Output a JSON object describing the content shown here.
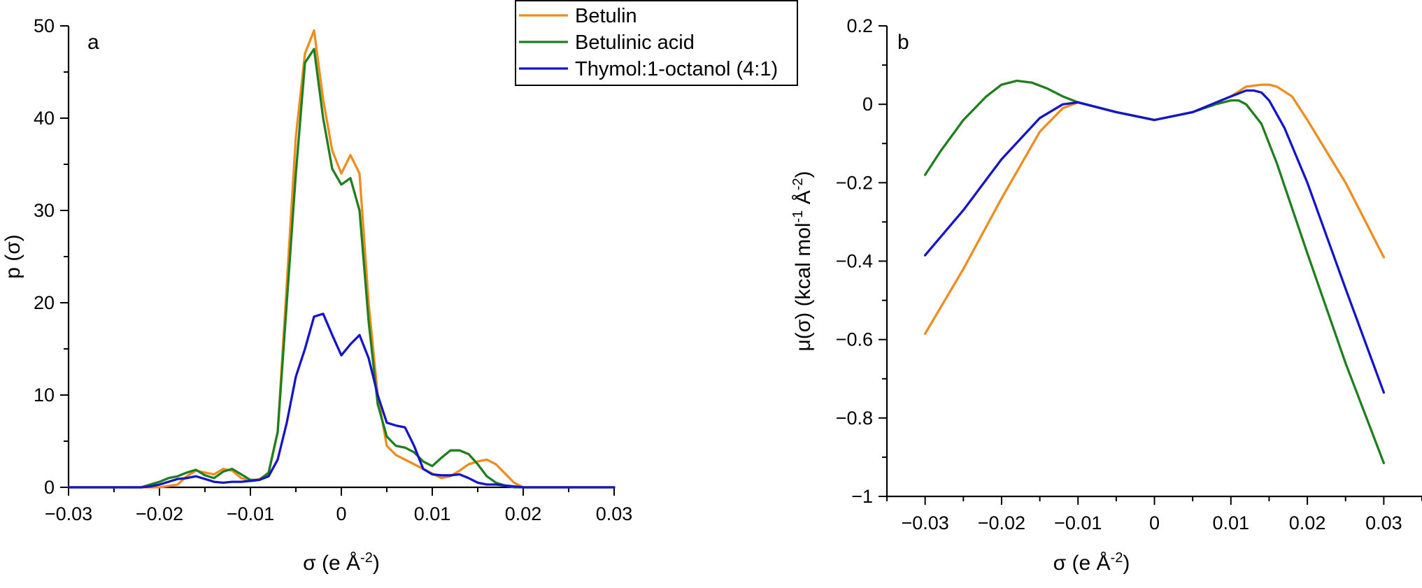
{
  "legend": {
    "entries": [
      "Betulin",
      "Betulinic acid",
      "Thymol:1-octanol (4:1)"
    ]
  },
  "colors": {
    "betulin": "#ED8C1F",
    "betulinic": "#1F7F1F",
    "thymol": "#1414C8"
  },
  "chart_data": [
    {
      "type": "line",
      "panel_label": "a",
      "xlabel": "σ (e Å^-2)",
      "ylabel": "p (σ)",
      "xlim": [
        -0.03,
        0.03
      ],
      "ylim": [
        0,
        50
      ],
      "xticks": [
        -0.03,
        -0.02,
        -0.01,
        0,
        0.01,
        0.02,
        0.03
      ],
      "xtick_labels": [
        "−0.03",
        "−0.02",
        "−0.01",
        "0",
        "0.01",
        "0.02",
        "0.03"
      ],
      "yticks": [
        0,
        10,
        20,
        30,
        40,
        50
      ],
      "ytick_labels": [
        "0",
        "10",
        "20",
        "30",
        "40",
        "50"
      ],
      "series": [
        {
          "name": "Betulin",
          "x": [
            -0.03,
            -0.022,
            -0.02,
            -0.018,
            -0.017,
            -0.016,
            -0.015,
            -0.014,
            -0.013,
            -0.012,
            -0.011,
            -0.01,
            -0.009,
            -0.008,
            -0.007,
            -0.006,
            -0.005,
            -0.004,
            -0.003,
            -0.002,
            -0.001,
            0,
            0.001,
            0.002,
            0.003,
            0.004,
            0.005,
            0.006,
            0.007,
            0.008,
            0.009,
            0.01,
            0.011,
            0.012,
            0.013,
            0.014,
            0.015,
            0.016,
            0.017,
            0.018,
            0.019,
            0.02,
            0.021,
            0.03
          ],
          "y": [
            0,
            0,
            0,
            0.3,
            1.2,
            1.8,
            1.6,
            1.4,
            2.0,
            1.8,
            1.0,
            0.7,
            0.9,
            1.5,
            6,
            22,
            38,
            47,
            49.5,
            42,
            36.5,
            34,
            36,
            34,
            20,
            10,
            4.5,
            3.5,
            3.0,
            2.5,
            2.0,
            1.5,
            1.0,
            1.2,
            1.8,
            2.5,
            2.8,
            3.0,
            2.5,
            1.5,
            0.5,
            0,
            0,
            0
          ]
        },
        {
          "name": "Betulinic acid",
          "x": [
            -0.03,
            -0.022,
            -0.021,
            -0.02,
            -0.019,
            -0.018,
            -0.017,
            -0.016,
            -0.015,
            -0.014,
            -0.013,
            -0.012,
            -0.011,
            -0.01,
            -0.009,
            -0.008,
            -0.007,
            -0.006,
            -0.005,
            -0.004,
            -0.003,
            -0.002,
            -0.001,
            0,
            0.001,
            0.002,
            0.003,
            0.004,
            0.005,
            0.006,
            0.007,
            0.008,
            0.009,
            0.01,
            0.011,
            0.012,
            0.013,
            0.014,
            0.015,
            0.016,
            0.017,
            0.018,
            0.019,
            0.02,
            0.021,
            0.03
          ],
          "y": [
            0,
            0,
            0.3,
            0.6,
            1.0,
            1.2,
            1.6,
            1.9,
            1.3,
            1.0,
            1.7,
            2.0,
            1.4,
            0.8,
            0.8,
            1.6,
            6,
            20,
            34,
            46,
            47.5,
            40,
            34.5,
            32.8,
            33.5,
            30,
            18,
            9,
            5.5,
            4.5,
            4.3,
            3.8,
            2.8,
            2.3,
            3.2,
            4.0,
            4.0,
            3.6,
            2.5,
            1.2,
            0.5,
            0.2,
            0,
            0,
            0,
            0
          ]
        },
        {
          "name": "Thymol:1-octanol (4:1)",
          "x": [
            -0.03,
            -0.022,
            -0.021,
            -0.02,
            -0.019,
            -0.018,
            -0.017,
            -0.016,
            -0.015,
            -0.014,
            -0.013,
            -0.012,
            -0.011,
            -0.01,
            -0.009,
            -0.008,
            -0.007,
            -0.006,
            -0.005,
            -0.004,
            -0.003,
            -0.002,
            -0.001,
            0,
            0.001,
            0.002,
            0.003,
            0.004,
            0.005,
            0.006,
            0.007,
            0.008,
            0.009,
            0.01,
            0.011,
            0.012,
            0.013,
            0.014,
            0.015,
            0.016,
            0.017,
            0.018,
            0.019,
            0.02,
            0.021,
            0.03
          ],
          "y": [
            0,
            0,
            0.1,
            0.3,
            0.6,
            0.9,
            1.0,
            1.2,
            0.9,
            0.6,
            0.5,
            0.6,
            0.6,
            0.7,
            0.8,
            1.2,
            3,
            7,
            12,
            15,
            18.5,
            18.8,
            16.5,
            14.3,
            15.5,
            16.5,
            14,
            10,
            7,
            6.7,
            6.5,
            4.5,
            2.0,
            1.4,
            1.3,
            1.3,
            1.4,
            1.0,
            0.5,
            0.3,
            0.3,
            0.2,
            0.1,
            0,
            0,
            0
          ]
        }
      ]
    },
    {
      "type": "line",
      "panel_label": "b",
      "xlabel": "σ (e Å^-2)",
      "ylabel": "μ(σ) (kcal mol^-1 Å^-2)",
      "xlim": [
        -0.035,
        0.035
      ],
      "ylim": [
        -1,
        0.2
      ],
      "xticks": [
        -0.03,
        -0.02,
        -0.01,
        0,
        0.01,
        0.02,
        0.03
      ],
      "xtick_labels": [
        "−0.03",
        "−0.02",
        "−0.01",
        "0",
        "0.01",
        "0.02",
        "0.03"
      ],
      "yticks": [
        0.2,
        0,
        -0.2,
        -0.4,
        -0.6,
        -0.8,
        -1
      ],
      "ytick_labels": [
        "0.2",
        "0",
        "−0.2",
        "−0.4",
        "−0.6",
        "−0.8",
        "−1"
      ],
      "series": [
        {
          "name": "Betulin",
          "x": [
            -0.03,
            -0.025,
            -0.02,
            -0.015,
            -0.012,
            -0.01,
            -0.005,
            0,
            0.005,
            0.01,
            0.012,
            0.014,
            0.015,
            0.016,
            0.018,
            0.02,
            0.025,
            0.03
          ],
          "y": [
            -0.585,
            -0.42,
            -0.24,
            -0.07,
            -0.01,
            0.005,
            -0.02,
            -0.04,
            -0.02,
            0.02,
            0.045,
            0.05,
            0.05,
            0.045,
            0.02,
            -0.04,
            -0.2,
            -0.39
          ]
        },
        {
          "name": "Betulinic acid",
          "x": [
            -0.03,
            -0.028,
            -0.025,
            -0.022,
            -0.02,
            -0.018,
            -0.016,
            -0.014,
            -0.012,
            -0.01,
            -0.005,
            0,
            0.005,
            0.008,
            0.01,
            0.011,
            0.012,
            0.014,
            0.016,
            0.02,
            0.025,
            0.03
          ],
          "y": [
            -0.18,
            -0.12,
            -0.04,
            0.02,
            0.05,
            0.06,
            0.055,
            0.04,
            0.02,
            0.005,
            -0.02,
            -0.04,
            -0.02,
            0.0,
            0.01,
            0.01,
            0.0,
            -0.05,
            -0.15,
            -0.38,
            -0.66,
            -0.915
          ]
        },
        {
          "name": "Thymol:1-octanol (4:1)",
          "x": [
            -0.03,
            -0.025,
            -0.02,
            -0.015,
            -0.012,
            -0.01,
            -0.005,
            0,
            0.005,
            0.01,
            0.012,
            0.013,
            0.014,
            0.015,
            0.017,
            0.02,
            0.025,
            0.03
          ],
          "y": [
            -0.385,
            -0.27,
            -0.14,
            -0.035,
            0.0,
            0.005,
            -0.02,
            -0.04,
            -0.02,
            0.02,
            0.035,
            0.035,
            0.03,
            0.01,
            -0.06,
            -0.2,
            -0.47,
            -0.735
          ]
        }
      ]
    }
  ]
}
